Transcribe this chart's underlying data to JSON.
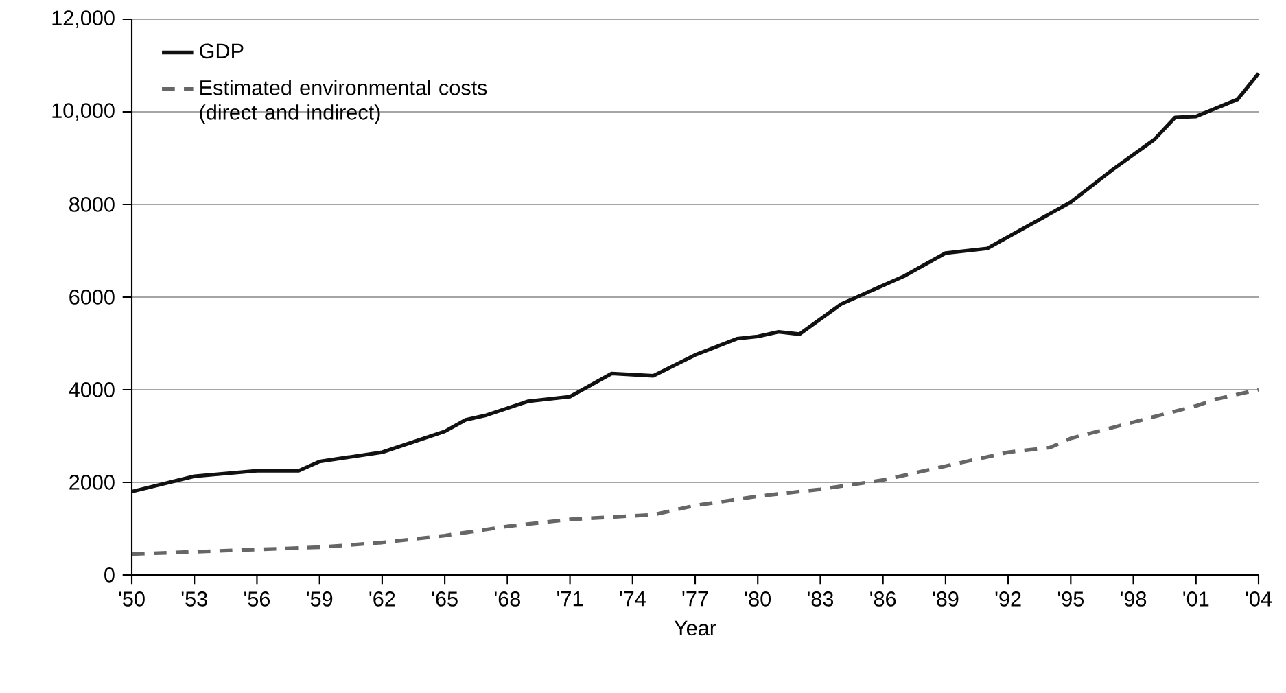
{
  "chart_data": {
    "type": "line",
    "xlabel": "Year",
    "xlim": [
      1950,
      2004
    ],
    "ylim": [
      0,
      12000
    ],
    "xticks": [
      {
        "value": 1950,
        "label": "'50"
      },
      {
        "value": 1953,
        "label": "'53"
      },
      {
        "value": 1956,
        "label": "'56"
      },
      {
        "value": 1959,
        "label": "'59"
      },
      {
        "value": 1962,
        "label": "'62"
      },
      {
        "value": 1965,
        "label": "'65"
      },
      {
        "value": 1968,
        "label": "'68"
      },
      {
        "value": 1971,
        "label": "'71"
      },
      {
        "value": 1974,
        "label": "'74"
      },
      {
        "value": 1977,
        "label": "'77"
      },
      {
        "value": 1980,
        "label": "'80"
      },
      {
        "value": 1983,
        "label": "'83"
      },
      {
        "value": 1986,
        "label": "'86"
      },
      {
        "value": 1989,
        "label": "'89"
      },
      {
        "value": 1992,
        "label": "'92"
      },
      {
        "value": 1995,
        "label": "'95"
      },
      {
        "value": 1998,
        "label": "'98"
      },
      {
        "value": 2001,
        "label": "'01"
      },
      {
        "value": 2004,
        "label": "'04"
      }
    ],
    "yticks": [
      0,
      2000,
      4000,
      6000,
      8000,
      {
        "value": 10000,
        "label": "10,000"
      },
      {
        "value": 12000,
        "label": "12,000"
      }
    ],
    "grid": "y",
    "legend": "top left",
    "marker": "none",
    "series": [
      {
        "name": "GDP",
        "color": "#111111",
        "line_style": "solid",
        "x": [
          1950,
          1953,
          1956,
          1958,
          1959,
          1962,
          1965,
          1966,
          1967,
          1969,
          1971,
          1973,
          1975,
          1977,
          1979,
          1980,
          1981,
          1982,
          1984,
          1986,
          1987,
          1989,
          1991,
          1993,
          1995,
          1997,
          1999,
          2000,
          2001,
          2003,
          2004
        ],
        "values": [
          1800,
          2130,
          2250,
          2250,
          2450,
          2650,
          3100,
          3350,
          3450,
          3750,
          3850,
          4350,
          4300,
          4750,
          5100,
          5150,
          5250,
          5200,
          5850,
          6250,
          6450,
          6950,
          7050,
          7550,
          8050,
          8750,
          9400,
          9880,
          9900,
          10270,
          10830
        ]
      },
      {
        "name": "Estimated environmental costs (direct and indirect)",
        "color": "#666666",
        "line_style": "dashed",
        "x": [
          1950,
          1956,
          1959,
          1962,
          1965,
          1968,
          1971,
          1975,
          1977,
          1980,
          1983,
          1986,
          1989,
          1992,
          1994,
          1995,
          1998,
          2001,
          2002,
          2004
        ],
        "values": [
          450,
          550,
          600,
          700,
          850,
          1050,
          1200,
          1300,
          1500,
          1700,
          1850,
          2050,
          2350,
          2650,
          2750,
          2950,
          3300,
          3650,
          3800,
          4000
        ]
      }
    ]
  }
}
